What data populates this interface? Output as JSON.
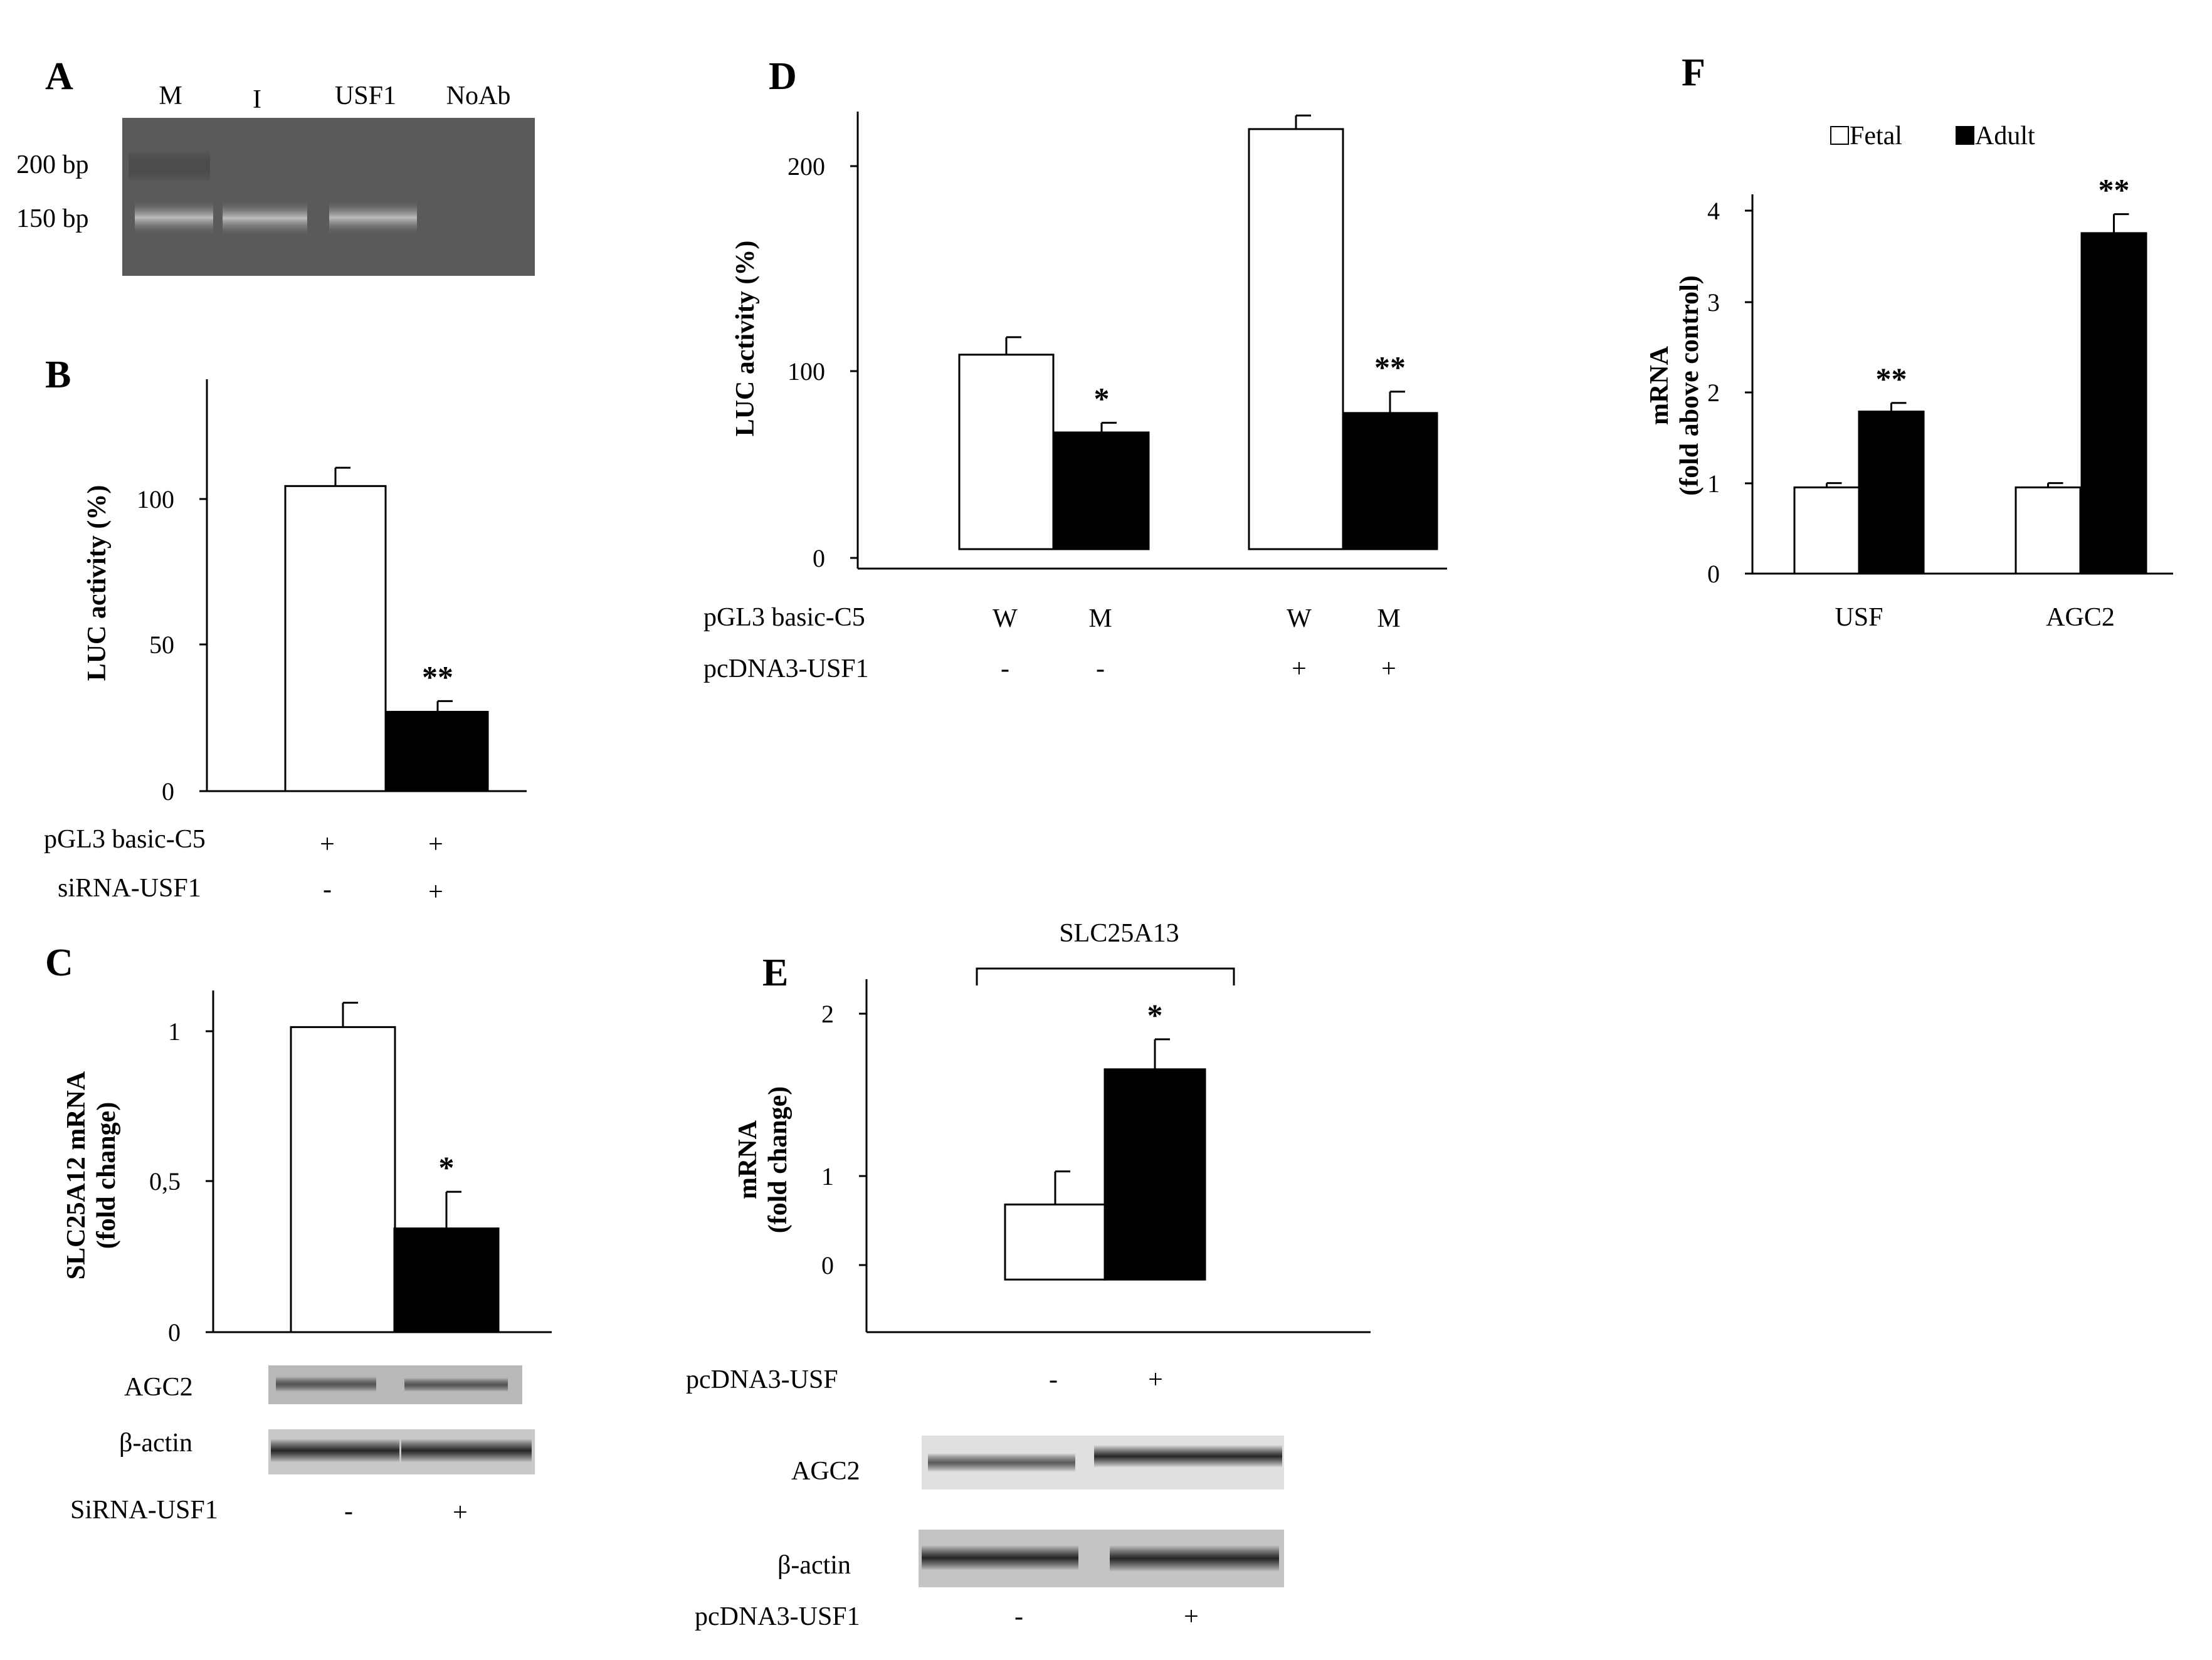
{
  "panels": {
    "A": {
      "label": "A",
      "lanes": [
        "M",
        "I",
        "USF1",
        "NoAb"
      ],
      "markers": [
        "200 bp",
        "150 bp"
      ]
    },
    "B": {
      "label": "B",
      "rows": [
        {
          "name": "pGL3  basic-C5",
          "values": [
            "+",
            "+"
          ]
        },
        {
          "name": "siRNA-USF1",
          "values": [
            "-",
            "+"
          ]
        }
      ]
    },
    "C": {
      "label": "C",
      "blots": [
        "AGC2",
        "β-actin"
      ],
      "rows": [
        {
          "name": "SiRNA-USF1",
          "values": [
            "-",
            "+"
          ]
        }
      ]
    },
    "D": {
      "label": "D",
      "rows": [
        {
          "name": "pGL3  basic-C5",
          "values": [
            "W",
            "M",
            "W",
            "M"
          ]
        },
        {
          "name": "pcDNA3-USF1",
          "values": [
            "-",
            "-",
            "+",
            "+"
          ]
        }
      ]
    },
    "E": {
      "label": "E",
      "bracket_label": "SLC25A13",
      "rows_top": [
        {
          "name": "pcDNA3-USF",
          "values": [
            "-",
            "+"
          ]
        }
      ],
      "blots": [
        "AGC2",
        "β-actin"
      ],
      "rows_bottom": [
        {
          "name": "pcDNA3-USF1",
          "values": [
            "-",
            "+"
          ]
        }
      ]
    },
    "F": {
      "label": "F"
    }
  },
  "chart_data": [
    {
      "panel": "B",
      "type": "bar",
      "ylabel": "LUC activity  (%)",
      "yticks": [
        "0",
        "50",
        "100"
      ],
      "ylim": [
        0,
        135
      ],
      "values": [
        100,
        26
      ],
      "errors": [
        6,
        3.5
      ],
      "fills": [
        "#ffffff",
        "#000000"
      ],
      "annotations": [
        "",
        "**"
      ]
    },
    {
      "panel": "C",
      "type": "bar",
      "ylabel_lines": [
        "SLC25A12 mRNA",
        "(fold change)"
      ],
      "yticks": [
        "0",
        "0,5",
        "1"
      ],
      "ylim": [
        0,
        1.12
      ],
      "values": [
        1.0,
        0.34
      ],
      "errors": [
        0.08,
        0.12
      ],
      "fills": [
        "#ffffff",
        "#000000"
      ],
      "annotations": [
        "",
        "*"
      ]
    },
    {
      "panel": "D",
      "type": "bar",
      "ylabel": "LUC activity  (%)",
      "yticks": [
        "0",
        "100",
        "200"
      ],
      "ylim": [
        -10,
        225
      ],
      "values": [
        100,
        60,
        216,
        70
      ],
      "errors": [
        9,
        5,
        7,
        11
      ],
      "fills": [
        "#ffffff",
        "#000000",
        "#ffffff",
        "#000000"
      ],
      "annotations": [
        "",
        "*",
        "",
        "**"
      ]
    },
    {
      "panel": "E",
      "type": "bar",
      "ylabel_lines": [
        "mRNA",
        "(fold change)"
      ],
      "yticks": [
        "0",
        "1",
        "2"
      ],
      "ylim": [
        -0.35,
        2.0
      ],
      "values": [
        0.5,
        1.4
      ],
      "errors": [
        0.22,
        0.2
      ],
      "fills": [
        "#ffffff",
        "#000000"
      ],
      "annotations": [
        "",
        "*"
      ]
    },
    {
      "panel": "F",
      "type": "bar",
      "ylabel_lines": [
        "mRNA",
        "(fold above  control)"
      ],
      "yticks": [
        "0",
        "1",
        "2",
        "3",
        "4"
      ],
      "ylim": [
        0,
        4.4
      ],
      "categories": [
        "USF",
        "AGC2"
      ],
      "series": [
        {
          "name": "Fetal",
          "color": "#ffffff",
          "values": [
            1.0,
            1.0
          ],
          "errors": [
            0.05,
            0.05
          ],
          "annotations": [
            "",
            ""
          ]
        },
        {
          "name": "Adult",
          "color": "#000000",
          "values": [
            1.88,
            3.95
          ],
          "errors": [
            0.1,
            0.22
          ],
          "annotations": [
            "**",
            "**"
          ]
        }
      ],
      "legend": "top"
    }
  ]
}
